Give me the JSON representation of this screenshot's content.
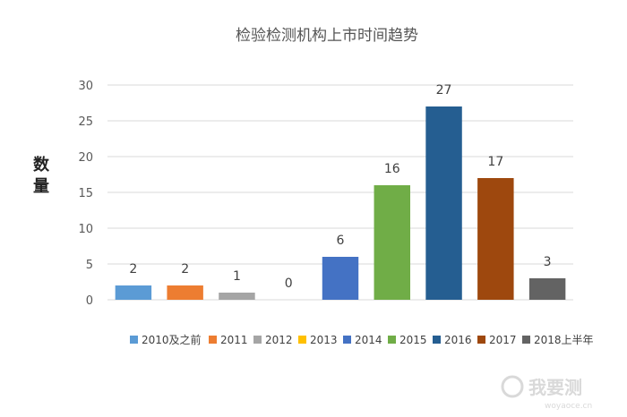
{
  "chart_data": {
    "type": "bar",
    "title": "检验检测机构上市时间趋势",
    "ylabel": "数量",
    "xlabel": "",
    "ylim": [
      0,
      30
    ],
    "yticks": [
      0,
      5,
      10,
      15,
      20,
      25,
      30
    ],
    "grid": true,
    "legend_position": "bottom",
    "categories": [
      "2010及之前",
      "2011",
      "2012",
      "2013",
      "2014",
      "2015",
      "2016",
      "2017",
      "2018上半年"
    ],
    "values": [
      2,
      2,
      1,
      0,
      6,
      16,
      27,
      17,
      3
    ],
    "colors": [
      "#5b9bd5",
      "#ed7d31",
      "#a5a5a5",
      "#ffc000",
      "#4472c4",
      "#70ad47",
      "#255e91",
      "#9e480e",
      "#636363"
    ]
  },
  "watermark": {
    "main": "我要测",
    "sub": "woyaoce.cn"
  }
}
